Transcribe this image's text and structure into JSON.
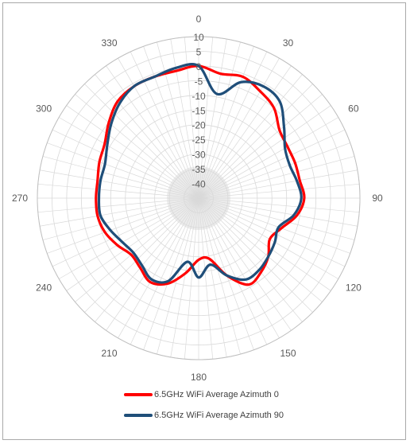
{
  "chart_data": {
    "type": "radar",
    "polar": true,
    "r_ticks": [
      10,
      5,
      0,
      -5,
      -10,
      -15,
      -20,
      -25,
      -30,
      -35,
      -40
    ],
    "r_range": [
      -45,
      10
    ],
    "theta_labels": [
      "0",
      "30",
      "60",
      "90",
      "120",
      "150",
      "180",
      "210",
      "240",
      "270",
      "300",
      "330"
    ],
    "angle_step_deg": 5,
    "grid": true,
    "legend_position": "bottom",
    "series": [
      {
        "name": "6.5GHz WiFi Average Azimuth 0",
        "color": "#ff0000",
        "angles": [
          0,
          10,
          20,
          30,
          40,
          50,
          60,
          70,
          80,
          90,
          100,
          110,
          120,
          130,
          140,
          150,
          160,
          170,
          180,
          190,
          200,
          210,
          220,
          230,
          240,
          250,
          260,
          270,
          280,
          290,
          300,
          310,
          320,
          330,
          340,
          350
        ],
        "values": [
          0,
          -2,
          -1,
          -3,
          -5,
          -9,
          -10,
          -10,
          -10,
          -9,
          -11,
          -15,
          -17,
          -14,
          -12,
          -11,
          -17,
          -24,
          -24,
          -19,
          -14,
          -12,
          -14,
          -15,
          -13,
          -11,
          -10,
          -10,
          -10,
          -9,
          -8,
          -5,
          -2,
          -1,
          -1,
          -1
        ]
      },
      {
        "name": "6.5GHz WiFi Average Azimuth 90",
        "color": "#1f4e79",
        "angles": [
          0,
          10,
          20,
          30,
          40,
          50,
          60,
          70,
          80,
          90,
          100,
          110,
          120,
          130,
          140,
          150,
          160,
          170,
          180,
          190,
          200,
          210,
          220,
          230,
          240,
          250,
          260,
          270,
          280,
          290,
          300,
          310,
          320,
          330,
          340,
          350
        ],
        "values": [
          0,
          -9,
          -3,
          -1,
          -2,
          -7,
          -11,
          -12,
          -11,
          -10,
          -12,
          -16,
          -15,
          -14,
          -13,
          -13,
          -17,
          -22,
          -18,
          -23,
          -15,
          -13,
          -15,
          -16,
          -15,
          -13,
          -11,
          -11,
          -11,
          -11,
          -9,
          -6,
          -3,
          -1,
          -1,
          0
        ]
      }
    ]
  },
  "legend": {
    "items": [
      {
        "label": "6.5GHz WiFi Average Azimuth 0",
        "color": "#ff0000"
      },
      {
        "label": "6.5GHz WiFi Average Azimuth 90",
        "color": "#1f4e79"
      }
    ]
  }
}
